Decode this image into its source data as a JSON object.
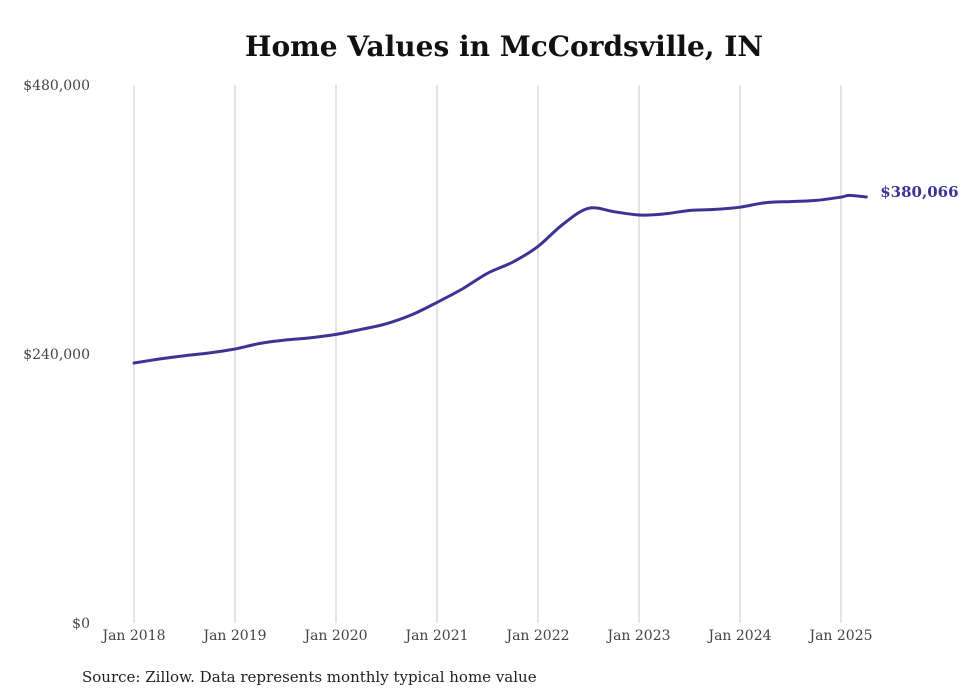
{
  "chart_data": {
    "type": "line",
    "title": "Home Values in McCordsville, IN",
    "source": "Source: Zillow. Data represents monthly typical home value",
    "x_ticks": [
      "Jan 2018",
      "Jan 2019",
      "Jan 2020",
      "Jan 2021",
      "Jan 2022",
      "Jan 2023",
      "Jan 2024",
      "Jan 2025"
    ],
    "y_ticks": [
      "$0",
      "$240,000",
      "$480,000"
    ],
    "ylim": [
      0,
      480000
    ],
    "xlim": [
      "2018-01",
      "2025-04"
    ],
    "grid": "vertical",
    "line_color": "#3b3494",
    "end_label": "$380,066",
    "series": [
      {
        "points": [
          [
            "2018-01",
            232000
          ],
          [
            "2018-04",
            235500
          ],
          [
            "2018-07",
            238500
          ],
          [
            "2018-10",
            241000
          ],
          [
            "2019-01",
            244500
          ],
          [
            "2019-04",
            249500
          ],
          [
            "2019-07",
            252500
          ],
          [
            "2019-10",
            254500
          ],
          [
            "2020-01",
            257500
          ],
          [
            "2020-04",
            262000
          ],
          [
            "2020-07",
            267000
          ],
          [
            "2020-10",
            275000
          ],
          [
            "2021-01",
            286000
          ],
          [
            "2021-04",
            298000
          ],
          [
            "2021-07",
            312000
          ],
          [
            "2021-10",
            322000
          ],
          [
            "2022-01",
            336000
          ],
          [
            "2022-04",
            356000
          ],
          [
            "2022-07",
            370000
          ],
          [
            "2022-10",
            367000
          ],
          [
            "2023-01",
            364000
          ],
          [
            "2023-04",
            365000
          ],
          [
            "2023-07",
            368000
          ],
          [
            "2023-10",
            369000
          ],
          [
            "2024-01",
            371000
          ],
          [
            "2024-04",
            375000
          ],
          [
            "2024-07",
            376000
          ],
          [
            "2024-10",
            377000
          ],
          [
            "2025-01",
            380000
          ],
          [
            "2025-02",
            381500
          ],
          [
            "2025-04",
            380066
          ]
        ]
      }
    ]
  }
}
